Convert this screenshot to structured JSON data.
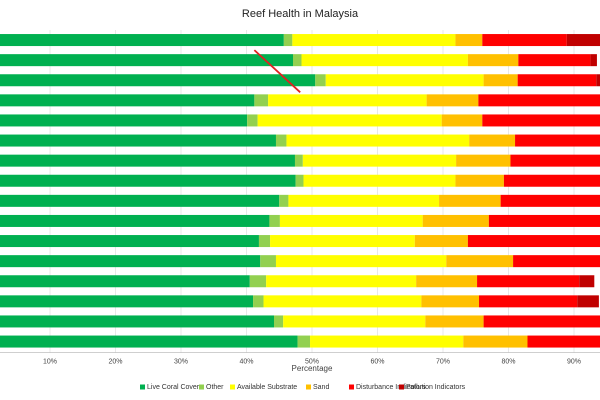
{
  "chart_data": {
    "type": "bar",
    "orientation": "horizontal",
    "stacked": true,
    "title": "Reef Health in Malaysia",
    "xlabel": "Percentage",
    "ylabel": "",
    "xlim": [
      0,
      100
    ],
    "x_ticks": [
      "10%",
      "20%",
      "30%",
      "40%",
      "50%",
      "60%",
      "70%",
      "80%",
      "90%"
    ],
    "grid": true,
    "legend_position": "bottom",
    "series": [
      {
        "name": "Live Coral Cover",
        "color": "#00b050",
        "values": [
          45.7,
          47.1,
          50.5,
          41.2,
          40.1,
          44.5,
          47.4,
          47.5,
          45.0,
          43.5,
          41.9,
          42.1,
          40.5,
          41.0,
          44.2,
          47.8
        ]
      },
      {
        "name": "Other",
        "color": "#92d050",
        "values": [
          1.3,
          1.3,
          1.6,
          2.1,
          1.6,
          1.6,
          1.2,
          1.2,
          1.4,
          1.6,
          1.7,
          2.4,
          2.5,
          1.6,
          1.4,
          1.9
        ]
      },
      {
        "name": "Available Substrate",
        "color": "#ffff00",
        "values": [
          24.9,
          25.4,
          24.1,
          24.2,
          28.1,
          27.9,
          23.4,
          23.2,
          23.0,
          21.8,
          22.1,
          26.0,
          22.9,
          24.1,
          21.7,
          23.4
        ]
      },
      {
        "name": "Sand",
        "color": "#ffc000",
        "values": [
          4.1,
          7.7,
          5.2,
          7.9,
          6.2,
          7.0,
          8.3,
          7.4,
          9.4,
          10.1,
          8.1,
          10.2,
          9.3,
          8.8,
          8.9,
          9.8
        ]
      },
      {
        "name": "Disturbance Indicators",
        "color": "#ff0000",
        "values": [
          12.9,
          11.0,
          12.0,
          24.6,
          23.6,
          19.1,
          19.8,
          20.9,
          21.3,
          23.1,
          26.3,
          19.4,
          15.6,
          15.0,
          22.0,
          17.2
        ]
      },
      {
        "name": "Pollution Indicators",
        "color": "#c00000",
        "values": [
          11.2,
          1.0,
          0.7,
          0.0,
          0.5,
          0.0,
          0.0,
          0.0,
          0.0,
          0.0,
          0.0,
          0.0,
          2.3,
          3.3,
          0.0,
          0.0
        ]
      }
    ],
    "annotations": [
      {
        "type": "line",
        "color": "#e02020",
        "from": [
          41.2,
          1
        ],
        "to": [
          48.2,
          3
        ]
      }
    ]
  }
}
